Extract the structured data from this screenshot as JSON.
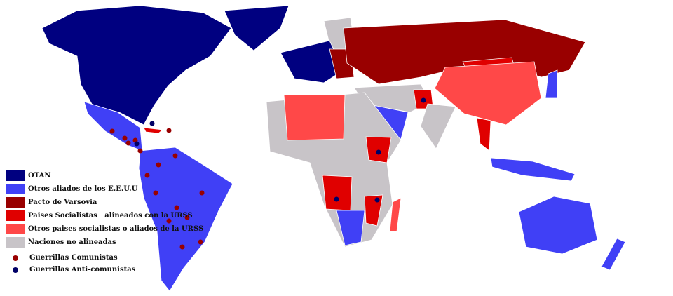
{
  "colors": {
    "otan": "#000080",
    "us_allies": "#4040f6",
    "warsaw": "#990000",
    "socialist_aligned": "#e00000",
    "other_socialist": "#ff4848",
    "non_aligned": "#c8c4c8",
    "border": "#ffffff",
    "communist_guerrilla": "#990000",
    "anticommunist_guerrilla": "#000066"
  },
  "legend": {
    "items": [
      {
        "label": "OTAN",
        "color": "#000080"
      },
      {
        "label": "Otros aliados de los E.E.U.U",
        "color": "#4040f6"
      },
      {
        "label": "Pacto de Varsovia",
        "color": "#990000"
      },
      {
        "label": "Paises Socialistas   alineados con la URSS",
        "color": "#e00000"
      },
      {
        "label": "Otros paises socialistas o aliados de la URSS",
        "color": "#ff4848"
      },
      {
        "label": "Naciones no alineadas",
        "color": "#c8c4c8"
      }
    ],
    "markers": [
      {
        "label": "Guerrillas Comunistas",
        "color": "#990000"
      },
      {
        "label": "Guerrillas Anti-comunistas",
        "color": "#000066"
      }
    ]
  }
}
